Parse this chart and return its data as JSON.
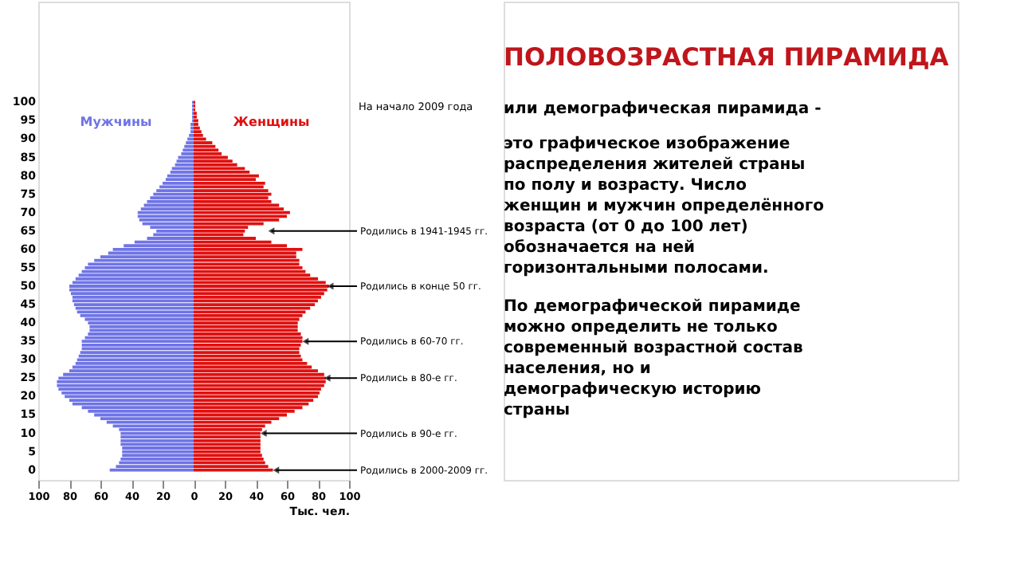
{
  "chart_data": {
    "type": "bar",
    "orientation": "horizontal",
    "title": "ПОЛОВОЗРАСТНАЯ ПИРАМИДА",
    "subtitle": "На начало 2009 года",
    "xlabel": "Тыс. чел.",
    "categories": [
      "100",
      null,
      null,
      null,
      null,
      "95",
      null,
      null,
      null,
      null,
      "90",
      null,
      null,
      null,
      null,
      "85",
      null,
      null,
      null,
      null,
      "80",
      null,
      null,
      null,
      null,
      "75",
      null,
      null,
      null,
      null,
      "70",
      null,
      null,
      null,
      null,
      "65",
      null,
      null,
      null,
      null,
      "60",
      null,
      null,
      null,
      null,
      "55",
      null,
      null,
      null,
      null,
      "50",
      null,
      null,
      null,
      null,
      "45",
      null,
      null,
      null,
      null,
      "40",
      null,
      null,
      null,
      null,
      "35",
      null,
      null,
      null,
      null,
      "30",
      null,
      null,
      null,
      null,
      "25",
      null,
      null,
      null,
      null,
      "20",
      null,
      null,
      null,
      null,
      "15",
      null,
      null,
      null,
      null,
      "10",
      null,
      null,
      null,
      null,
      "5",
      null,
      null,
      null,
      null,
      "0"
    ],
    "series": [
      {
        "name": "Мужчины",
        "color": "#6f74e6",
        "values": [
          -1,
          -1,
          -1,
          -1,
          -1,
          -1,
          -2,
          -2,
          -2,
          -3,
          -4,
          -5,
          -6,
          -7,
          -8,
          -10,
          -11,
          -12,
          -14,
          -15,
          -17,
          -18,
          -20,
          -22,
          -24,
          -26,
          -28,
          -30,
          -32,
          -34,
          -36,
          -36,
          -35,
          -33,
          -28,
          -24,
          -26,
          -30,
          -38,
          -45,
          -52,
          -55,
          -60,
          -64,
          -68,
          -70,
          -72,
          -74,
          -76,
          -78,
          -80,
          -80,
          -79,
          -78,
          -78,
          -77,
          -76,
          -75,
          -73,
          -70,
          -68,
          -67,
          -67,
          -68,
          -70,
          -72,
          -72,
          -72,
          -73,
          -74,
          -75,
          -76,
          -78,
          -80,
          -84,
          -87,
          -88,
          -88,
          -87,
          -85,
          -83,
          -80,
          -78,
          -72,
          -68,
          -64,
          -60,
          -56,
          -52,
          -48,
          -47,
          -47,
          -47,
          -47,
          -46,
          -46,
          -46,
          -47,
          -48,
          -50,
          -54
        ]
      },
      {
        "name": "Женщины",
        "color": "#e01010",
        "values": [
          1,
          1,
          1,
          2,
          2,
          3,
          3,
          4,
          5,
          6,
          8,
          12,
          14,
          16,
          18,
          22,
          25,
          28,
          33,
          36,
          42,
          40,
          46,
          45,
          48,
          50,
          48,
          50,
          55,
          58,
          62,
          60,
          55,
          45,
          35,
          33,
          32,
          40,
          50,
          60,
          70,
          66,
          66,
          68,
          68,
          70,
          72,
          75,
          80,
          85,
          87,
          86,
          84,
          82,
          80,
          78,
          75,
          72,
          70,
          68,
          67,
          67,
          67,
          69,
          70,
          70,
          69,
          68,
          68,
          69,
          70,
          73,
          76,
          80,
          84,
          85,
          85,
          84,
          82,
          81,
          80,
          77,
          74,
          70,
          65,
          60,
          55,
          50,
          46,
          44,
          43,
          43,
          43,
          43,
          43,
          43,
          44,
          45,
          46,
          48,
          51
        ]
      }
    ],
    "xlim": [
      -100,
      100
    ],
    "xticks": [
      {
        "value": -100,
        "label": "100"
      },
      {
        "value": -80,
        "label": "80"
      },
      {
        "value": -60,
        "label": "60"
      },
      {
        "value": -40,
        "label": "40"
      },
      {
        "value": -20,
        "label": "20"
      },
      0,
      20,
      40,
      60,
      80,
      100
    ],
    "legend": false,
    "grid": false,
    "annotations": [
      {
        "text": "Родились в 1941-1945 гг.",
        "x": 50,
        "y": "65"
      },
      {
        "text": "Родились в конце 50 гг.",
        "x": 88,
        "y": "50"
      },
      {
        "text": "Родились в 60-70 гг.",
        "x": 72,
        "y": "35"
      },
      {
        "text": "Родились в 80-е гг.",
        "x": 86,
        "y": "25"
      },
      {
        "text": "Родились в 90-е гг.",
        "x": 45,
        "y": "10"
      },
      {
        "text": "Родились в 2000-2009 гг.",
        "x": 53,
        "y": "0"
      },
      "или демографическая пирамида  -",
      "это графическое изображение\nраспределения жителей страны\nпо полу и возрасту. Число\nженщин и мужчин определённого\nвозраста (от 0 до 100 лет)\nобозначается на ней\nгоризонтальными полосами.",
      "По демографической пирамиде\nможно определить не только\nсовременный возрастной состав\nнаселения, но и\nдемографическую историю\nстраны"
    ]
  }
}
